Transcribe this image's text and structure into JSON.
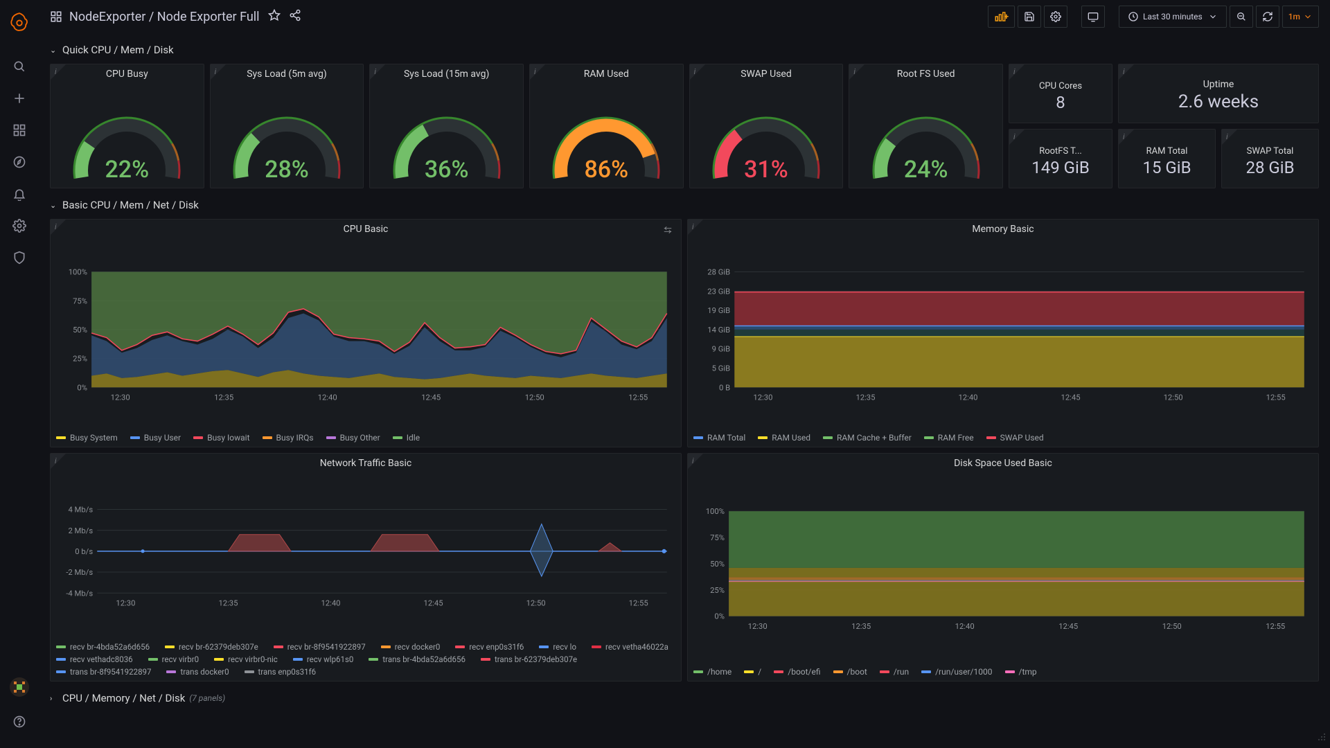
{
  "breadcrumb": {
    "folder": "NodeExporter",
    "dash": "Node Exporter Full"
  },
  "timepicker": {
    "label": "Last 30 minutes",
    "refresh": "1m"
  },
  "rows": {
    "quick": "Quick CPU / Mem / Disk",
    "basic": "Basic CPU / Mem / Net / Disk",
    "more": "CPU / Memory / Net / Disk",
    "more_count": "(7 panels)"
  },
  "gauges": [
    {
      "title": "CPU Busy",
      "pct": 22,
      "val": "22%",
      "color": "#73bf69"
    },
    {
      "title": "Sys Load (5m avg)",
      "pct": 28,
      "val": "28%",
      "color": "#73bf69"
    },
    {
      "title": "Sys Load (15m avg)",
      "pct": 36,
      "val": "36%",
      "color": "#73bf69"
    },
    {
      "title": "RAM Used",
      "pct": 86,
      "val": "86%",
      "color": "#ff9830"
    },
    {
      "title": "SWAP Used",
      "pct": 31,
      "val": "31%",
      "color": "#f2495c"
    },
    {
      "title": "Root FS Used",
      "pct": 24,
      "val": "24%",
      "color": "#73bf69"
    }
  ],
  "stats": {
    "cores": {
      "title": "CPU Cores",
      "val": "8"
    },
    "uptime": {
      "title": "Uptime",
      "val": "2.6 weeks"
    },
    "rootfs": {
      "title": "RootFS T...",
      "val": "149 GiB"
    },
    "ram": {
      "title": "RAM Total",
      "val": "15 GiB"
    },
    "swap": {
      "title": "SWAP Total",
      "val": "28 GiB"
    }
  },
  "xticks": [
    "12:30",
    "12:35",
    "12:40",
    "12:45",
    "12:50",
    "12:55"
  ],
  "cpu_chart": {
    "title": "CPU Basic",
    "yticks": [
      "0%",
      "25%",
      "50%",
      "75%",
      "100%"
    ],
    "series": [
      {
        "name": "Busy System",
        "color": "#fade2a",
        "data": [
          10,
          12,
          8,
          9,
          11,
          13,
          10,
          12,
          14,
          15,
          12,
          9,
          13,
          15,
          12,
          10,
          9,
          8,
          10,
          12,
          9,
          8,
          7,
          8,
          10,
          12,
          10,
          9,
          8,
          10,
          9,
          8,
          10,
          12,
          10,
          9,
          8,
          10,
          12
        ]
      },
      {
        "name": "Busy User",
        "color": "#5794f2",
        "data": [
          35,
          28,
          22,
          25,
          30,
          32,
          30,
          25,
          28,
          35,
          32,
          25,
          30,
          45,
          52,
          48,
          35,
          32,
          30,
          25,
          20,
          28,
          45,
          32,
          22,
          20,
          25,
          40,
          35,
          25,
          20,
          18,
          20,
          45,
          38,
          28,
          25,
          30,
          48
        ]
      },
      {
        "name": "Busy Iowait",
        "color": "#f2495c",
        "data": [
          2,
          3,
          2,
          3,
          4,
          3,
          2,
          3,
          4,
          3,
          2,
          3,
          4,
          5,
          4,
          3,
          2,
          3,
          2,
          3,
          2,
          3,
          4,
          3,
          2,
          3,
          2,
          3,
          2,
          2,
          2,
          3,
          2,
          3,
          2,
          3,
          2,
          3,
          4
        ]
      },
      {
        "name": "Busy IRQs",
        "color": "#ff9830",
        "data": [
          1,
          1,
          1,
          1,
          1,
          1,
          1,
          1,
          1,
          1,
          1,
          1,
          1,
          1,
          1,
          1,
          1,
          1,
          1,
          1,
          1,
          1,
          1,
          1,
          1,
          1,
          1,
          1,
          1,
          1,
          1,
          1,
          1,
          1,
          1,
          1,
          1,
          1,
          1
        ]
      },
      {
        "name": "Busy Other",
        "color": "#b877d9",
        "data": [
          0,
          0,
          0,
          0,
          0,
          0,
          0,
          0,
          0,
          0,
          0,
          0,
          0,
          0,
          0,
          0,
          0,
          0,
          0,
          0,
          0,
          0,
          0,
          0,
          0,
          0,
          0,
          0,
          0,
          0,
          0,
          0,
          0,
          0,
          0,
          0,
          0,
          0,
          0
        ]
      },
      {
        "name": "Idle",
        "color": "#73bf69",
        "data": [
          100,
          100,
          100,
          100,
          100,
          100,
          100,
          100,
          100,
          100,
          100,
          100,
          100,
          100,
          100,
          100,
          100,
          100,
          100,
          100,
          100,
          100,
          100,
          100,
          100,
          100,
          100,
          100,
          100,
          100,
          100,
          100,
          100,
          100,
          100,
          100,
          100,
          100,
          100
        ]
      }
    ]
  },
  "mem_chart": {
    "title": "Memory Basic",
    "yticks": [
      "0 B",
      "5 GiB",
      "9 GiB",
      "14 GiB",
      "19 GiB",
      "23 GiB",
      "28 GiB"
    ],
    "ymax": 28,
    "series": [
      {
        "name": "RAM Total",
        "color": "#5794f2",
        "level": 14.9
      },
      {
        "name": "RAM Used",
        "color": "#fade2a",
        "level": 12.3
      },
      {
        "name": "RAM Cache + Buffer",
        "color": "#73bf69",
        "level": 14.4
      },
      {
        "name": "RAM Free",
        "color": "#73bf69",
        "level": 14.4
      },
      {
        "name": "SWAP Used",
        "color": "#f2495c",
        "level": 23.1
      }
    ],
    "legend": [
      "RAM Total",
      "RAM Used",
      "RAM Cache + Buffer",
      "RAM Free",
      "SWAP Used"
    ],
    "legend_colors": [
      "#5794f2",
      "#fade2a",
      "#73bf69",
      "#73bf69",
      "#f2495c"
    ]
  },
  "net_chart": {
    "title": "Network Traffic Basic",
    "yticks": [
      "-4 Mb/s",
      "-2 Mb/s",
      "0 b/s",
      "2 Mb/s",
      "4 Mb/s"
    ],
    "legend": [
      {
        "name": "recv br-4bda52a6d656",
        "color": "#73bf69"
      },
      {
        "name": "recv br-62379deb307e",
        "color": "#fade2a"
      },
      {
        "name": "recv br-8f9541922897",
        "color": "#f2495c"
      },
      {
        "name": "recv docker0",
        "color": "#ff9830"
      },
      {
        "name": "recv enp0s31f6",
        "color": "#f2495c"
      },
      {
        "name": "recv lo",
        "color": "#5794f2"
      },
      {
        "name": "recv vetha46022a",
        "color": "#e02f44"
      },
      {
        "name": "recv vethadc8036",
        "color": "#5794f2"
      },
      {
        "name": "recv virbr0",
        "color": "#73bf69"
      },
      {
        "name": "recv virbr0-nic",
        "color": "#fade2a"
      },
      {
        "name": "recv wlp61s0",
        "color": "#5794f2"
      },
      {
        "name": "trans br-4bda52a6d656",
        "color": "#73bf69"
      },
      {
        "name": "trans br-62379deb307e",
        "color": "#f2495c"
      },
      {
        "name": "trans br-8f9541922897",
        "color": "#5794f2"
      },
      {
        "name": "trans docker0",
        "color": "#b877d9"
      },
      {
        "name": "trans enp0s31f6",
        "color": "#8e9297"
      }
    ]
  },
  "disk_chart": {
    "title": "Disk Space Used Basic",
    "yticks": [
      "0%",
      "25%",
      "50%",
      "75%",
      "100%"
    ],
    "legend": [
      {
        "name": "/home",
        "color": "#73bf69"
      },
      {
        "name": "/",
        "color": "#fade2a"
      },
      {
        "name": "/boot/efi",
        "color": "#f2495c"
      },
      {
        "name": "/boot",
        "color": "#ff9830"
      },
      {
        "name": "/run",
        "color": "#f2495c"
      },
      {
        "name": "/run/user/1000",
        "color": "#5794f2"
      },
      {
        "name": "/tmp",
        "color": "#fa6dba"
      }
    ],
    "levels": [
      100,
      46,
      37,
      36,
      34,
      33,
      33
    ]
  }
}
